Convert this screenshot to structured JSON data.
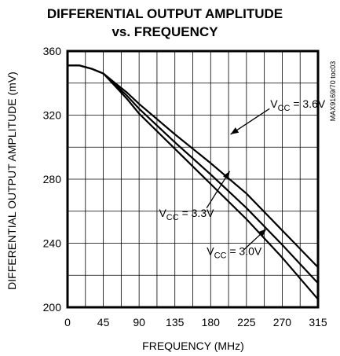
{
  "chart_data": {
    "type": "line",
    "title_lines": [
      "DIFFERENTIAL OUTPUT AMPLITUDE",
      "vs. FREQUENCY"
    ],
    "xlabel": "FREQUENCY (MHz)",
    "ylabel": "DIFFERENTIAL OUTPUT AMPLITUDE (mV)",
    "xlim": [
      0,
      315
    ],
    "ylim": [
      200,
      360
    ],
    "x_ticks": [
      0,
      45,
      90,
      135,
      180,
      225,
      270,
      315
    ],
    "y_ticks": [
      200,
      240,
      280,
      320,
      360
    ],
    "x_tick_labels": [
      "0",
      "45",
      "90",
      "135",
      "180",
      "225",
      "270",
      "315"
    ],
    "y_tick_labels": [
      "200",
      "240",
      "280",
      "320",
      "360"
    ],
    "grid": true,
    "side_label": "MAX9169/70 toc03",
    "series": [
      {
        "name": "VCC = 3.6V",
        "label_main": "V",
        "label_sub": "CC",
        "label_rest": " = 3.6V",
        "points": [
          [
            0,
            351
          ],
          [
            15,
            351
          ],
          [
            30,
            349
          ],
          [
            45,
            346
          ],
          [
            60,
            340
          ],
          [
            75,
            334
          ],
          [
            90,
            327
          ],
          [
            135,
            308
          ],
          [
            180,
            290
          ],
          [
            225,
            271
          ],
          [
            270,
            248
          ],
          [
            315,
            225
          ]
        ]
      },
      {
        "name": "VCC = 3.3V",
        "label_main": "V",
        "label_sub": "CC",
        "label_rest": " = 3.3V",
        "points": [
          [
            0,
            351
          ],
          [
            15,
            351
          ],
          [
            30,
            349
          ],
          [
            45,
            346
          ],
          [
            60,
            339
          ],
          [
            75,
            332
          ],
          [
            90,
            324
          ],
          [
            135,
            303
          ],
          [
            180,
            283
          ],
          [
            225,
            262
          ],
          [
            270,
            239
          ],
          [
            315,
            215
          ]
        ]
      },
      {
        "name": "VCC = 3.0V",
        "label_main": "V",
        "label_sub": "CC",
        "label_rest": " = 3.0V",
        "points": [
          [
            0,
            351
          ],
          [
            15,
            351
          ],
          [
            30,
            349
          ],
          [
            45,
            346
          ],
          [
            60,
            338
          ],
          [
            75,
            330
          ],
          [
            90,
            321
          ],
          [
            135,
            299
          ],
          [
            180,
            277
          ],
          [
            225,
            255
          ],
          [
            270,
            231
          ],
          [
            315,
            205
          ]
        ]
      }
    ],
    "annotations": [
      {
        "series": "VCC = 3.6V",
        "text_x": 255,
        "text_y": 327,
        "arrow_from": [
          254,
          324
        ],
        "arrow_to": [
          205,
          308
        ]
      },
      {
        "series": "VCC = 3.3V",
        "text_x": 115,
        "text_y": 259,
        "arrow_from": [
          175,
          262
        ],
        "arrow_to": [
          204,
          285
        ]
      },
      {
        "series": "VCC = 3.0V",
        "text_x": 175,
        "text_y": 235,
        "arrow_from": [
          222,
          236
        ],
        "arrow_to": [
          250,
          249
        ]
      }
    ]
  }
}
